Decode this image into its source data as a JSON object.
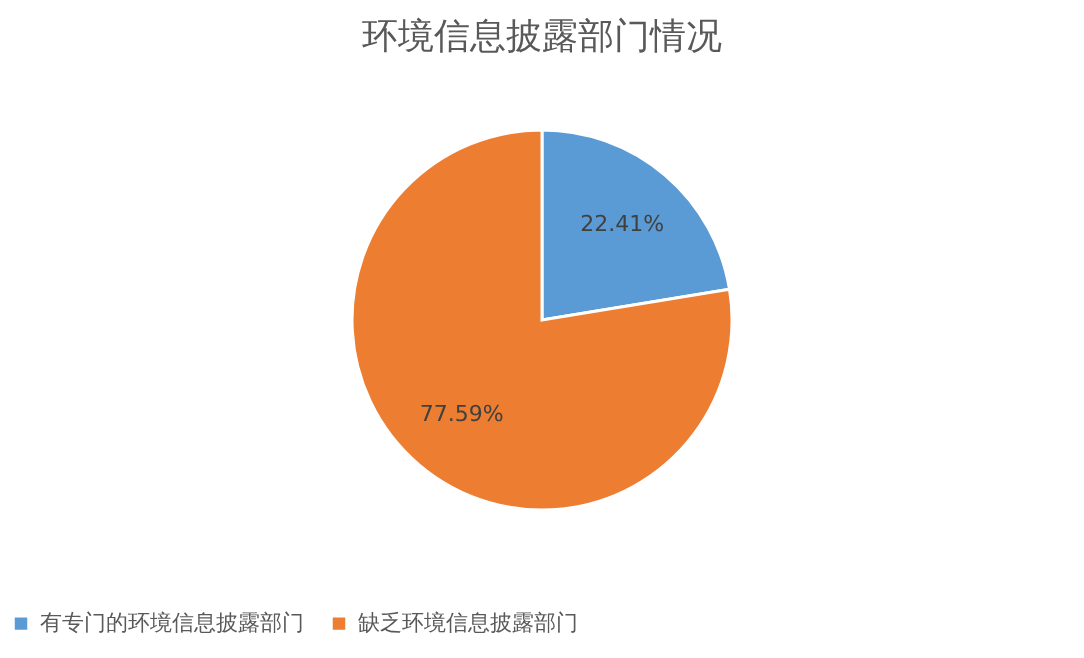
{
  "chart_data": {
    "type": "pie",
    "title": "环境信息披露部门情况",
    "categories": [
      "有专门的环境信息披露部门",
      "缺乏环境信息披露部门"
    ],
    "values": [
      22.41,
      77.59
    ],
    "colors": [
      "#5b9bd5",
      "#ed7d31"
    ],
    "value_labels": [
      "22.41%",
      "77.59%"
    ],
    "legend": "bottom"
  }
}
